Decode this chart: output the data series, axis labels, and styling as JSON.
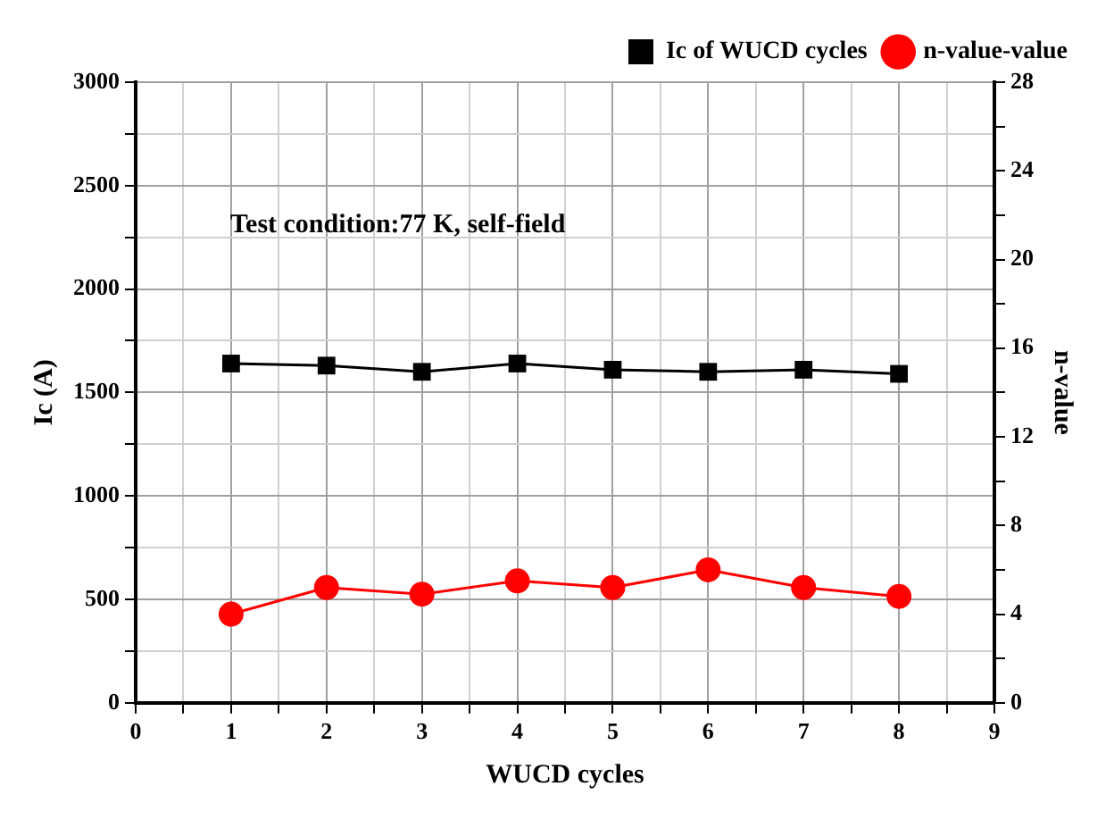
{
  "chart_data": {
    "type": "line",
    "xlabel": "WUCD cycles",
    "ylabel": "Ic (A)",
    "y2label": "n-value",
    "x": [
      1,
      2,
      3,
      4,
      5,
      6,
      7,
      8
    ],
    "series": [
      {
        "name": "Ic of WUCD cycles",
        "color": "#000000",
        "marker": "square",
        "values": [
          1640,
          1630,
          1600,
          1640,
          1610,
          1600,
          1610,
          1590
        ]
      },
      {
        "name": "n-value-value",
        "color": "#ff0000",
        "marker": "circle",
        "axis": "y2",
        "values": [
          4,
          5.2,
          4.9,
          5.5,
          5.2,
          6,
          5.2,
          4.8
        ]
      }
    ],
    "xlim": [
      0,
      9
    ],
    "xticks": [
      0,
      {
        "value": 0.5,
        "label": null
      },
      1,
      {
        "value": 1.5,
        "label": null
      },
      2,
      {
        "value": 2.5,
        "label": null
      },
      3,
      {
        "value": 3.5,
        "label": null
      },
      4,
      {
        "value": 4.5,
        "label": null
      },
      5,
      {
        "value": 5.5,
        "label": null
      },
      6,
      {
        "value": 6.5,
        "label": null
      },
      7,
      {
        "value": 7.5,
        "label": null
      },
      8,
      {
        "value": 8.5,
        "label": null
      },
      9
    ],
    "ylim": [
      0,
      3000
    ],
    "yticks": [
      0,
      {
        "value": 250,
        "label": null
      },
      500,
      {
        "value": 750,
        "label": null
      },
      1000,
      {
        "value": 1250,
        "label": null
      },
      1500,
      {
        "value": 1750,
        "label": null
      },
      2000,
      {
        "value": 2250,
        "label": null
      },
      2500,
      {
        "value": 2750,
        "label": null
      },
      3000
    ],
    "y2lim": [
      0,
      28
    ],
    "y2ticks": [
      0,
      {
        "value": 2,
        "label": null
      },
      4,
      {
        "value": 6,
        "label": null
      },
      8,
      {
        "value": 10,
        "label": null
      },
      12,
      {
        "value": 14,
        "label": null
      },
      16,
      {
        "value": 18,
        "label": null
      },
      20,
      {
        "value": 22,
        "label": null
      },
      24,
      {
        "value": 26,
        "label": null
      },
      28
    ],
    "annotations": [
      "Test condition:77 K, self-field"
    ],
    "grid": true,
    "legend": "top right",
    "line_style": "solid"
  }
}
